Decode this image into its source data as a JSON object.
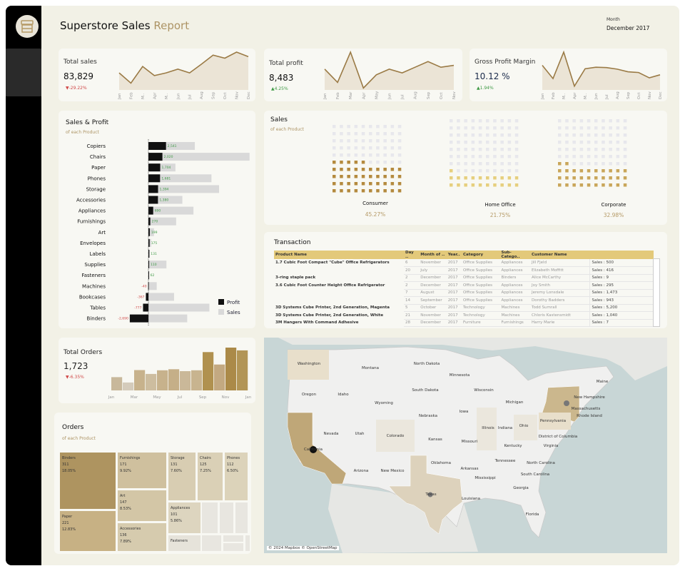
{
  "header": {
    "title_main": "Superstore Sales",
    "title_accent": "Report",
    "month_label": "Month",
    "month_value": "December 2017"
  },
  "icons": {
    "logo": "storefront-icon"
  },
  "colors": {
    "accent": "#ad9465",
    "line": "#9a7a45",
    "area": "#ebe4d6",
    "profit": "#111111",
    "sales": "#d9d9d9",
    "header": "#e3c97a",
    "negative": "#d04848",
    "positive": "#3f9a45"
  },
  "kpis": [
    {
      "title": "Total sales",
      "value": "83,829",
      "delta": "▼-29.22%",
      "trend": "down",
      "months": [
        "Jan",
        "Feb",
        "M..",
        "Apr",
        "M..",
        "Jun",
        "Jul",
        "Aug",
        "Sep",
        "Oct",
        "Nov",
        "Dec"
      ],
      "values": [
        45,
        18,
        62,
        38,
        45,
        55,
        45,
        68,
        92,
        84,
        100,
        88
      ]
    },
    {
      "title": "Total profit",
      "value": "8,483",
      "delta": "▲4.25%",
      "trend": "up",
      "months": [
        "Jan",
        "Feb",
        "Mar",
        "Apr",
        "May",
        "Jun",
        "Jul",
        "Aug",
        "Sep",
        "Oct",
        "Nov"
      ],
      "values": [
        55,
        20,
        100,
        5,
        40,
        55,
        45,
        60,
        75,
        60,
        65
      ]
    },
    {
      "title": "Gross Profit Margin",
      "value": "10.12 %",
      "delta": "▲1.94%",
      "trend": "up",
      "months": [
        "Jan",
        "Feb",
        "M..",
        "Apr",
        "M..",
        "Jun",
        "Jul",
        "Aug",
        "Sep",
        "Oct",
        "Nov",
        "Dec"
      ],
      "values": [
        65,
        30,
        100,
        10,
        56,
        60,
        59,
        55,
        48,
        46,
        32,
        40
      ]
    }
  ],
  "sales_profit": {
    "title": "Sales & Profit",
    "subtitle": "of each Product",
    "legend": [
      "Profit",
      "Sales"
    ],
    "chart_data": {
      "type": "bar",
      "orientation": "horizontal",
      "categories": [
        "Copiers",
        "Chairs",
        "Paper",
        "Phones",
        "Storage",
        "Accessories",
        "Appliances",
        "Furnishings",
        "Art",
        "Envelopes",
        "Labels",
        "Supplies",
        "Fasteners",
        "Machines",
        "Bookcases",
        "Tables",
        "Binders"
      ],
      "series": [
        {
          "name": "Profit",
          "values": [
            2541,
            2020,
            1704,
            1681,
            1394,
            1380,
            690,
            270,
            199,
            175,
            131,
            110,
            62,
            -40,
            -367,
            -777,
            -2690
          ],
          "labels": [
            "2,541",
            "2,020",
            "1,704",
            "1,681",
            "1,394",
            "1,380",
            "690",
            "270",
            "199",
            "175",
            "131",
            "110",
            "62",
            "-40",
            "-367",
            "-777",
            "-2,690"
          ]
        },
        {
          "name": "Sales",
          "values": [
            6700,
            14600,
            3900,
            9100,
            10200,
            4900,
            6500,
            4000,
            800,
            400,
            200,
            2600,
            100,
            1200,
            3700,
            8800,
            5600
          ]
        }
      ]
    }
  },
  "waffle": {
    "title": "Sales",
    "subtitle": "of each Product",
    "chart_data": {
      "type": "waffle",
      "grid": 100,
      "segments": [
        {
          "name": "Consumer",
          "pct": "45.27%",
          "value": 45.27,
          "color": "#b48a3e"
        },
        {
          "name": "Home Office",
          "pct": "21.75%",
          "value": 21.75,
          "color": "#e6cf7e"
        },
        {
          "name": "Corporate",
          "pct": "32.98%",
          "value": 32.98,
          "color": "#c9a65a"
        }
      ]
    }
  },
  "transaction": {
    "title": "Transaction",
    "columns": [
      "Product Name",
      "Day ..",
      "Month of ..",
      "Year..",
      "Category",
      "Sub-Catego..",
      "Customer Name",
      ""
    ],
    "rows": [
      [
        "1.7 Cubic Foot Compact \"Cube\" Office Refrigerators",
        "6",
        "November",
        "2017",
        "Office Supplies",
        "Appliances",
        "Jill Fjeld",
        "Sales : 500"
      ],
      [
        "",
        "20",
        "July",
        "2017",
        "Office Supplies",
        "Appliances",
        "Elizabeth Moffitt",
        "Sales : 416"
      ],
      [
        "3-ring staple pack",
        "2",
        "December",
        "2017",
        "Office Supplies",
        "Binders",
        "Alice McCarthy",
        "Sales : 9"
      ],
      [
        "3.6 Cubic Foot Counter Height Office Refrigerator",
        "2",
        "December",
        "2017",
        "Office Supplies",
        "Appliances",
        "Joy Smith",
        "Sales : 295"
      ],
      [
        "",
        "7",
        "August",
        "2017",
        "Office Supplies",
        "Appliances",
        "Jeremy Lonsdale",
        "Sales : 1,473"
      ],
      [
        "",
        "14",
        "September",
        "2017",
        "Office Supplies",
        "Appliances",
        "Dorothy Badders",
        "Sales : 943"
      ],
      [
        "3D Systems Cube Printer, 2nd Generation, Magenta",
        "5",
        "October",
        "2017",
        "Technology",
        "Machines",
        "Todd Sumrall",
        "Sales : 5,200"
      ],
      [
        "3D Systems Cube Printer, 2nd Generation, White",
        "21",
        "November",
        "2017",
        "Technology",
        "Machines",
        "Chloris Kastensmidt",
        "Sales : 1,040"
      ],
      [
        "3M Hangers With Command Adhesive",
        "28",
        "December",
        "2017",
        "Furniture",
        "Furnishings",
        "Harry Marie",
        "Sales : 7"
      ]
    ]
  },
  "orders_kpi": {
    "title": "Total Orders",
    "value": "1,723",
    "delta": "▼-6.35%",
    "chart_data": {
      "type": "bar",
      "x": [
        "Jan",
        "Feb",
        "Mar",
        "Apr",
        "May",
        "Jun",
        "Jul",
        "Aug",
        "Sep",
        "Oct",
        "Nov",
        "Dec"
      ],
      "tick_labels": [
        "Jan",
        "Mar",
        "May",
        "Jul",
        "Sep",
        "Nov",
        "Jan"
      ],
      "values": [
        62,
        37,
        95,
        77,
        94,
        99,
        90,
        94,
        179,
        121,
        200,
        187
      ]
    }
  },
  "orders_treemap": {
    "title": "Orders",
    "subtitle": "of each Product",
    "chart_data": {
      "type": "treemap",
      "items": [
        {
          "name": "Binders",
          "count": "311",
          "pct": "18.05%"
        },
        {
          "name": "Paper",
          "count": "221",
          "pct": "12.83%"
        },
        {
          "name": "Furnishings",
          "count": "171",
          "pct": "9.92%"
        },
        {
          "name": "Art",
          "count": "147",
          "pct": "8.53%"
        },
        {
          "name": "Accessories",
          "count": "136",
          "pct": "7.89%"
        },
        {
          "name": "Storage",
          "count": "131",
          "pct": "7.60%"
        },
        {
          "name": "Chairs",
          "count": "125",
          "pct": "7.25%"
        },
        {
          "name": "Phones",
          "count": "112",
          "pct": "6.50%"
        },
        {
          "name": "Appliances",
          "count": "101",
          "pct": "5.86%"
        },
        {
          "name": "Fasteners",
          "count": "",
          "pct": ""
        }
      ]
    }
  },
  "map": {
    "attribution": "© 2024 Mapbox © OpenStreetMap",
    "states": [
      "Washington",
      "Montana",
      "North Dakota",
      "Minnesota",
      "Oregon",
      "Idaho",
      "South Dakota",
      "Wisconsin",
      "Wyoming",
      "Michigan",
      "New Hampshire",
      "Massachusetts",
      "Rhode Island",
      "Maine",
      "Nebraska",
      "Iowa",
      "Nevada",
      "Utah",
      "Colorado",
      "Illinois",
      "Indiana",
      "Ohio",
      "Pennsylvania",
      "California",
      "Kansas",
      "Missouri",
      "Kentucky",
      "Virginia",
      "District of Columbia",
      "Tennessee",
      "Oklahoma",
      "Arizona",
      "New Mexico",
      "Arkansas",
      "North Carolina",
      "South Carolina",
      "Mississippi",
      "Georgia",
      "Texas",
      "Louisiana",
      "Florida"
    ],
    "highlighted": [
      "California",
      "New York",
      "Texas",
      "Washington",
      "Pennsylvania"
    ]
  }
}
